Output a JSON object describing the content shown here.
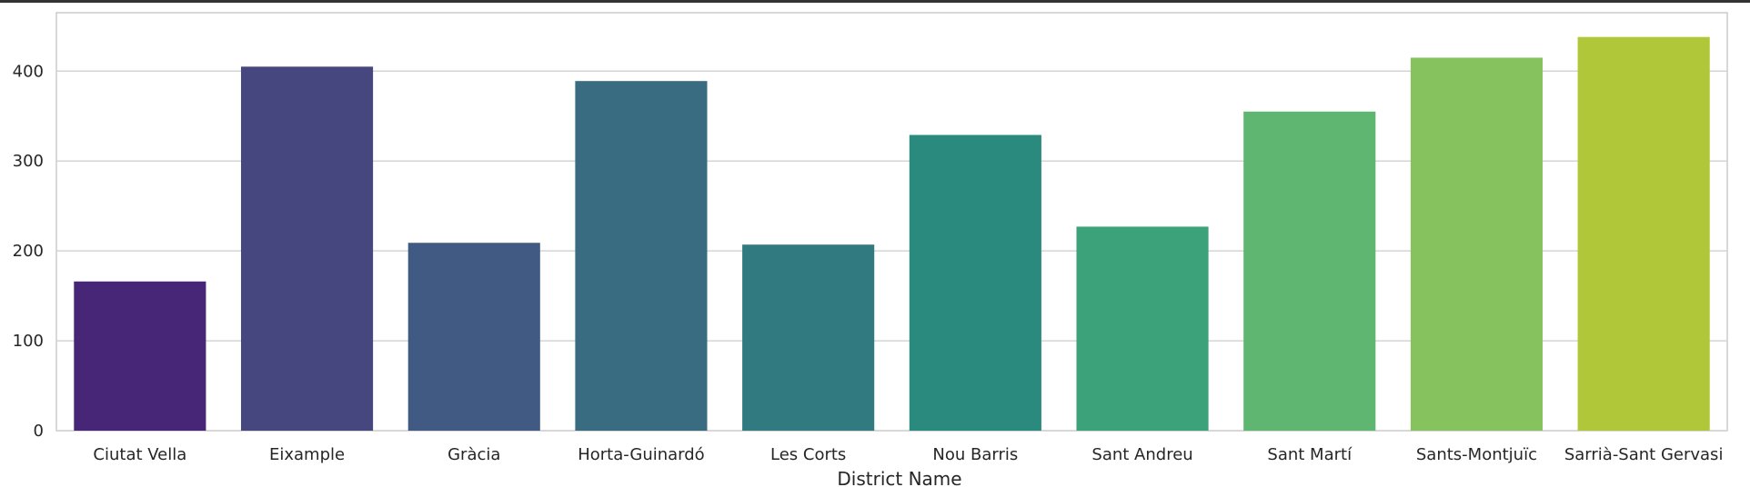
{
  "chart_data": {
    "type": "bar",
    "title": "",
    "xlabel": "District Name",
    "ylabel": "",
    "categories": [
      "Ciutat Vella",
      "Eixample",
      "Gràcia",
      "Horta-Guinardó",
      "Les Corts",
      "Nou Barris",
      "Sant Andreu",
      "Sant Martí",
      "Sants-Montjuïc",
      "Sarrià-Sant Gervasi"
    ],
    "values": [
      166,
      405,
      209,
      389,
      207,
      329,
      227,
      355,
      415,
      438
    ],
    "colors": [
      "#482677",
      "#46477e",
      "#415a84",
      "#396c81",
      "#317a80",
      "#2b8a7e",
      "#3ba27a",
      "#5eb670",
      "#86c35e",
      "#b0c739"
    ],
    "yticks": [
      0,
      100,
      200,
      300,
      400
    ],
    "ylim": [
      0,
      465
    ],
    "grid": "horizontal",
    "legend": "none"
  }
}
